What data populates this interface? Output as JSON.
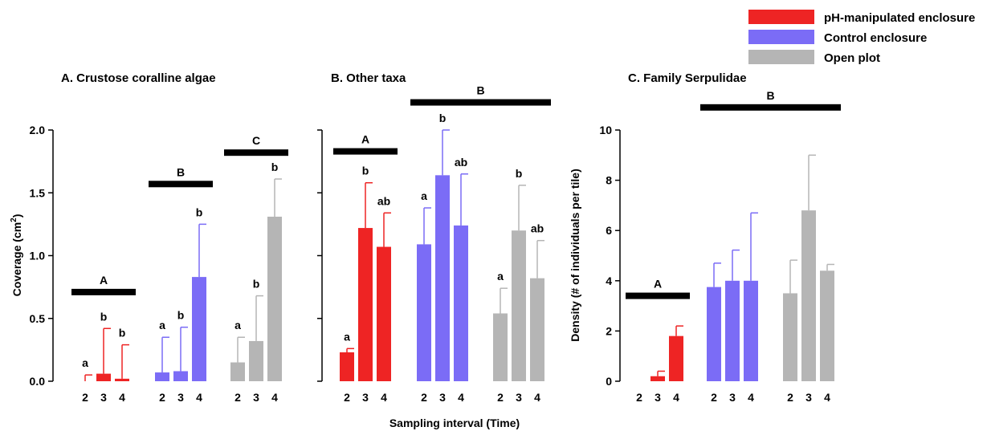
{
  "figure": {
    "xlabel": "Sampling interval (Time)"
  },
  "legend": {
    "placement": "top-right",
    "items": [
      {
        "label": "pH-manipulated enclosure",
        "color": "#ee2424"
      },
      {
        "label": "Control enclosure",
        "color": "#7b6cf6"
      },
      {
        "label": "Open plot",
        "color": "#b5b5b5"
      }
    ]
  },
  "chart_data": [
    {
      "type": "bar",
      "title": "A. Crustose coralline algae",
      "ylabel": "Coverage (cm²)",
      "ylim": [
        0,
        2.0
      ],
      "yticks": [
        "0.0",
        "0.5",
        "1.0",
        "1.5",
        "2.0"
      ],
      "show_ytick_labels": true,
      "groups": [
        {
          "name": "pH-manipulated enclosure",
          "color": "#ee2424",
          "categories": [
            "2",
            "3",
            "4"
          ],
          "values": [
            0.0,
            0.06,
            0.02
          ],
          "errors": [
            0.05,
            0.36,
            0.27
          ],
          "letters": [
            "a",
            "b",
            "b"
          ],
          "group_label": "A",
          "bracket_y": 0.71
        },
        {
          "name": "Control enclosure",
          "color": "#7b6cf6",
          "categories": [
            "2",
            "3",
            "4"
          ],
          "values": [
            0.07,
            0.08,
            0.83
          ],
          "errors": [
            0.28,
            0.35,
            0.42
          ],
          "letters": [
            "a",
            "b",
            "b"
          ],
          "group_label": "B",
          "bracket_y": 1.57
        },
        {
          "name": "Open plot",
          "color": "#b5b5b5",
          "categories": [
            "2",
            "3",
            "4"
          ],
          "values": [
            0.15,
            0.32,
            1.31
          ],
          "errors": [
            0.2,
            0.36,
            0.3
          ],
          "letters": [
            "a",
            "b",
            "b"
          ],
          "group_label": "C",
          "bracket_y": 1.82
        }
      ]
    },
    {
      "type": "bar",
      "title": "B. Other taxa",
      "ylabel": "",
      "ylim": [
        0,
        2.0
      ],
      "yticks": [
        "",
        "",
        "",
        "",
        ""
      ],
      "show_ytick_labels": false,
      "groups": [
        {
          "name": "pH-manipulated enclosure",
          "color": "#ee2424",
          "categories": [
            "2",
            "3",
            "4"
          ],
          "values": [
            0.23,
            1.22,
            1.07
          ],
          "errors": [
            0.03,
            0.36,
            0.27
          ],
          "letters": [
            "a",
            "b",
            "ab"
          ],
          "group_label": "A",
          "bracket_y": 1.83
        },
        {
          "name": "Control enclosure",
          "color": "#7b6cf6",
          "categories": [
            "2",
            "3",
            "4"
          ],
          "values": [
            1.09,
            1.64,
            1.24
          ],
          "errors": [
            0.29,
            0.36,
            0.41
          ],
          "letters": [
            "a",
            "b",
            "ab"
          ],
          "group_label": "B",
          "bracket_y": 2.22
        },
        {
          "name": "Open plot",
          "color": "#b5b5b5",
          "categories": [
            "2",
            "3",
            "4"
          ],
          "values": [
            0.54,
            1.2,
            0.82
          ],
          "errors": [
            0.2,
            0.36,
            0.3
          ],
          "letters": [
            "a",
            "b",
            "ab"
          ],
          "group_label": "",
          "bracket_y": 2.22
        }
      ],
      "shared_brackets": [
        {
          "label": "A",
          "groups": [
            0
          ],
          "y": 1.83
        },
        {
          "label": "B",
          "groups": [
            1,
            2
          ],
          "y": 2.22
        }
      ]
    },
    {
      "type": "bar",
      "title": "C. Family Serpulidae",
      "ylabel": "Density (# of individuals per tile)",
      "ylim": [
        0,
        10
      ],
      "yticks": [
        "0",
        "2",
        "4",
        "6",
        "8",
        "10"
      ],
      "show_ytick_labels": true,
      "groups": [
        {
          "name": "pH-manipulated enclosure",
          "color": "#ee2424",
          "categories": [
            "2",
            "3",
            "4"
          ],
          "values": [
            0.0,
            0.2,
            1.8
          ],
          "errors": [
            0.0,
            0.2,
            0.4
          ],
          "letters": [
            "",
            "",
            ""
          ]
        },
        {
          "name": "Control enclosure",
          "color": "#7b6cf6",
          "categories": [
            "2",
            "3",
            "4"
          ],
          "values": [
            3.75,
            4.0,
            4.0
          ],
          "errors": [
            0.95,
            1.22,
            2.7
          ],
          "letters": [
            "",
            "",
            ""
          ]
        },
        {
          "name": "Open plot",
          "color": "#b5b5b5",
          "categories": [
            "2",
            "3",
            "4"
          ],
          "values": [
            3.5,
            6.8,
            4.4
          ],
          "errors": [
            1.32,
            2.2,
            0.25
          ],
          "letters": [
            "",
            "",
            ""
          ]
        }
      ],
      "shared_brackets": [
        {
          "label": "A",
          "groups": [
            0
          ],
          "y": 3.4
        },
        {
          "label": "B",
          "groups": [
            1,
            2
          ],
          "y": 10.9
        }
      ]
    }
  ]
}
